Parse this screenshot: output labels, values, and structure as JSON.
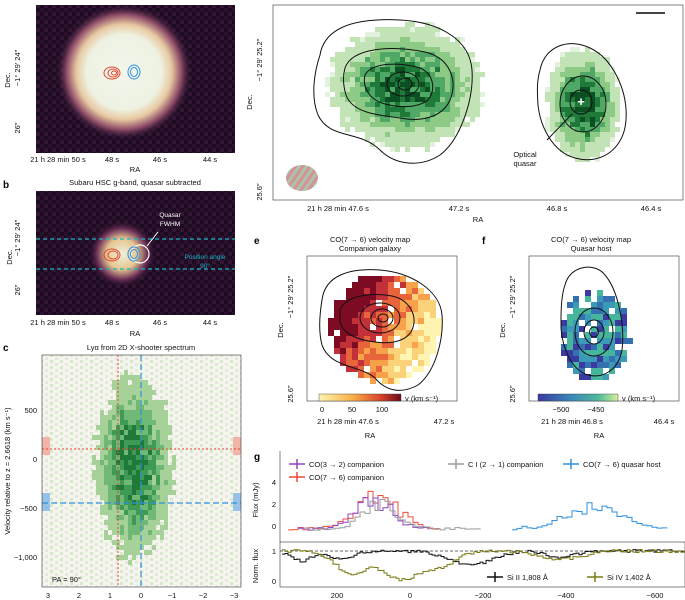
{
  "panels": {
    "a": {
      "tag": "a",
      "y_ticks": [
        "−1° 29′ 24″",
        "26″"
      ],
      "y_label": "Dec.",
      "x_ticks": [
        "21 h 28 min 50 s",
        "48 s",
        "46 s",
        "44 s"
      ],
      "x_label": "RA"
    },
    "b": {
      "tag": "b",
      "title": "Subaru HSC g-band, quasar subtracted",
      "y_ticks": [
        "−1° 29′ 24″",
        "26″"
      ],
      "y_label": "Dec.",
      "x_ticks": [
        "21 h 28 min 50 s",
        "48 s",
        "46 s",
        "44 s"
      ],
      "x_label": "RA",
      "annotation_fwhm": [
        "Quasar",
        "FWHM"
      ],
      "annotation_pa": [
        "Position angle",
        "90°"
      ]
    },
    "c": {
      "tag": "c",
      "title": "Lyα from 2D X-shooter spectrum",
      "y_label": "Velocity relative to z = 2.6618 (km s⁻¹)",
      "y_ticks": [
        "500",
        "0",
        "−500",
        "−1,000"
      ],
      "x_ticks": [
        "3",
        "2",
        "1",
        "0",
        "−1",
        "−2",
        "−3"
      ],
      "pa_label": "PA = 90°"
    },
    "d": {
      "y_ticks": [
        "−1° 29′ 25.2″",
        "25.6″"
      ],
      "y_label": "Dec.",
      "x_ticks": [
        "21 h 28 min 47.6 s",
        "47.2 s",
        "46.8 s",
        "46.4 s"
      ],
      "x_label": "RA",
      "annotation": [
        "Optical",
        "quasar"
      ]
    },
    "e": {
      "tag": "e",
      "title": [
        "CO(7 → 6) velocity map",
        "Companion galaxy"
      ],
      "y_ticks": [
        "−1° 29′ 25.2″",
        "25.6″"
      ],
      "y_label": "Dec.",
      "x_ticks": [
        "21 h 28 min 47.6 s",
        "47.2 s"
      ],
      "x_label": "RA",
      "colorbar_ticks": [
        "0",
        "50",
        "100"
      ],
      "colorbar_label": "v (km s⁻¹)"
    },
    "f": {
      "tag": "f",
      "title": [
        "CO(7 → 6) velocity map",
        "Quasar host"
      ],
      "y_ticks": [
        "−1° 29′ 25.2″",
        "25.6″"
      ],
      "y_label": "Dec.",
      "x_ticks": [
        "21 h 28 min 46.8 s",
        "46.4 s"
      ],
      "x_label": "RA",
      "colorbar_ticks": [
        "−500",
        "−450"
      ],
      "colorbar_label": "v (km s⁻¹)"
    },
    "g": {
      "tag": "g",
      "legend_top": [
        "CO(3 → 2) companion",
        "C I (2 → 1) companion",
        "CO(7 → 6) quasar host",
        "CO(7 → 6) companion"
      ],
      "flux_label": "Flux (mJy)",
      "flux_ticks": [
        "4",
        "2",
        "0"
      ],
      "norm_label": "Norm. flux",
      "norm_ticks": [
        "1",
        "0"
      ],
      "x_ticks": [
        "200",
        "0",
        "−200",
        "−400",
        "−600"
      ],
      "legend_bottom": [
        "Si II 1,808 Å",
        "Si IV 1,402 Å"
      ]
    }
  },
  "colors": {
    "co32": "#8e44c9",
    "co76c": "#ee4b3a",
    "ci": "#9a9a9a",
    "co76q": "#2c8fe0",
    "si2": "#111111",
    "si4": "#7a7a10",
    "cyan": "#19b6c8",
    "green_dark": "#0f5f2a"
  }
}
